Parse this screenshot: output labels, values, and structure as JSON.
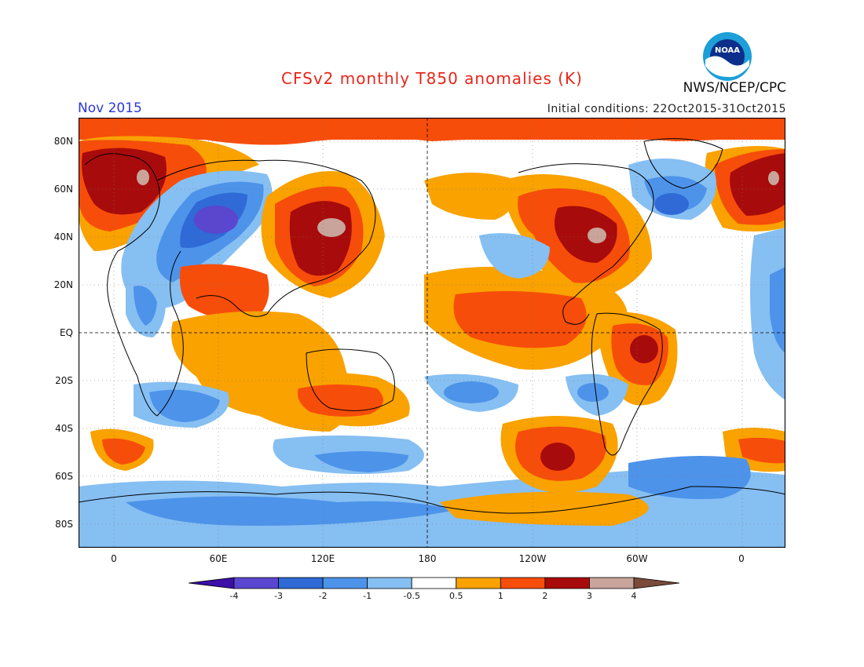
{
  "header": {
    "title": "CFSv2 monthly T850 anomalies (K)",
    "month": "Nov 2015",
    "initial_conditions": "Initial conditions: 22Oct2015-31Oct2015",
    "agency": "NWS/NCEP/CPC",
    "logo_text": "NOAA"
  },
  "axes": {
    "lat_ticks": [
      "80N",
      "60N",
      "40N",
      "20N",
      "EQ",
      "20S",
      "40S",
      "60S",
      "80S"
    ],
    "lon_ticks": [
      "0",
      "60E",
      "120E",
      "180",
      "120W",
      "60W",
      "0"
    ]
  },
  "colorbar": {
    "labels": [
      "-4",
      "-3",
      "-2",
      "-1",
      "-0.5",
      "0.5",
      "1",
      "2",
      "3",
      "4"
    ],
    "colors": [
      "#3b0fa8",
      "#5a46cf",
      "#2f6ad6",
      "#4d93ea",
      "#86bff2",
      "#ffffff",
      "#f9a200",
      "#f74d0a",
      "#a80b0b",
      "#c9a49a",
      "#7a4a3a"
    ]
  },
  "map": {
    "projection": "cylindrical equidistant",
    "grid": "dotted",
    "reference_lines": [
      "equator",
      "dateline"
    ]
  }
}
